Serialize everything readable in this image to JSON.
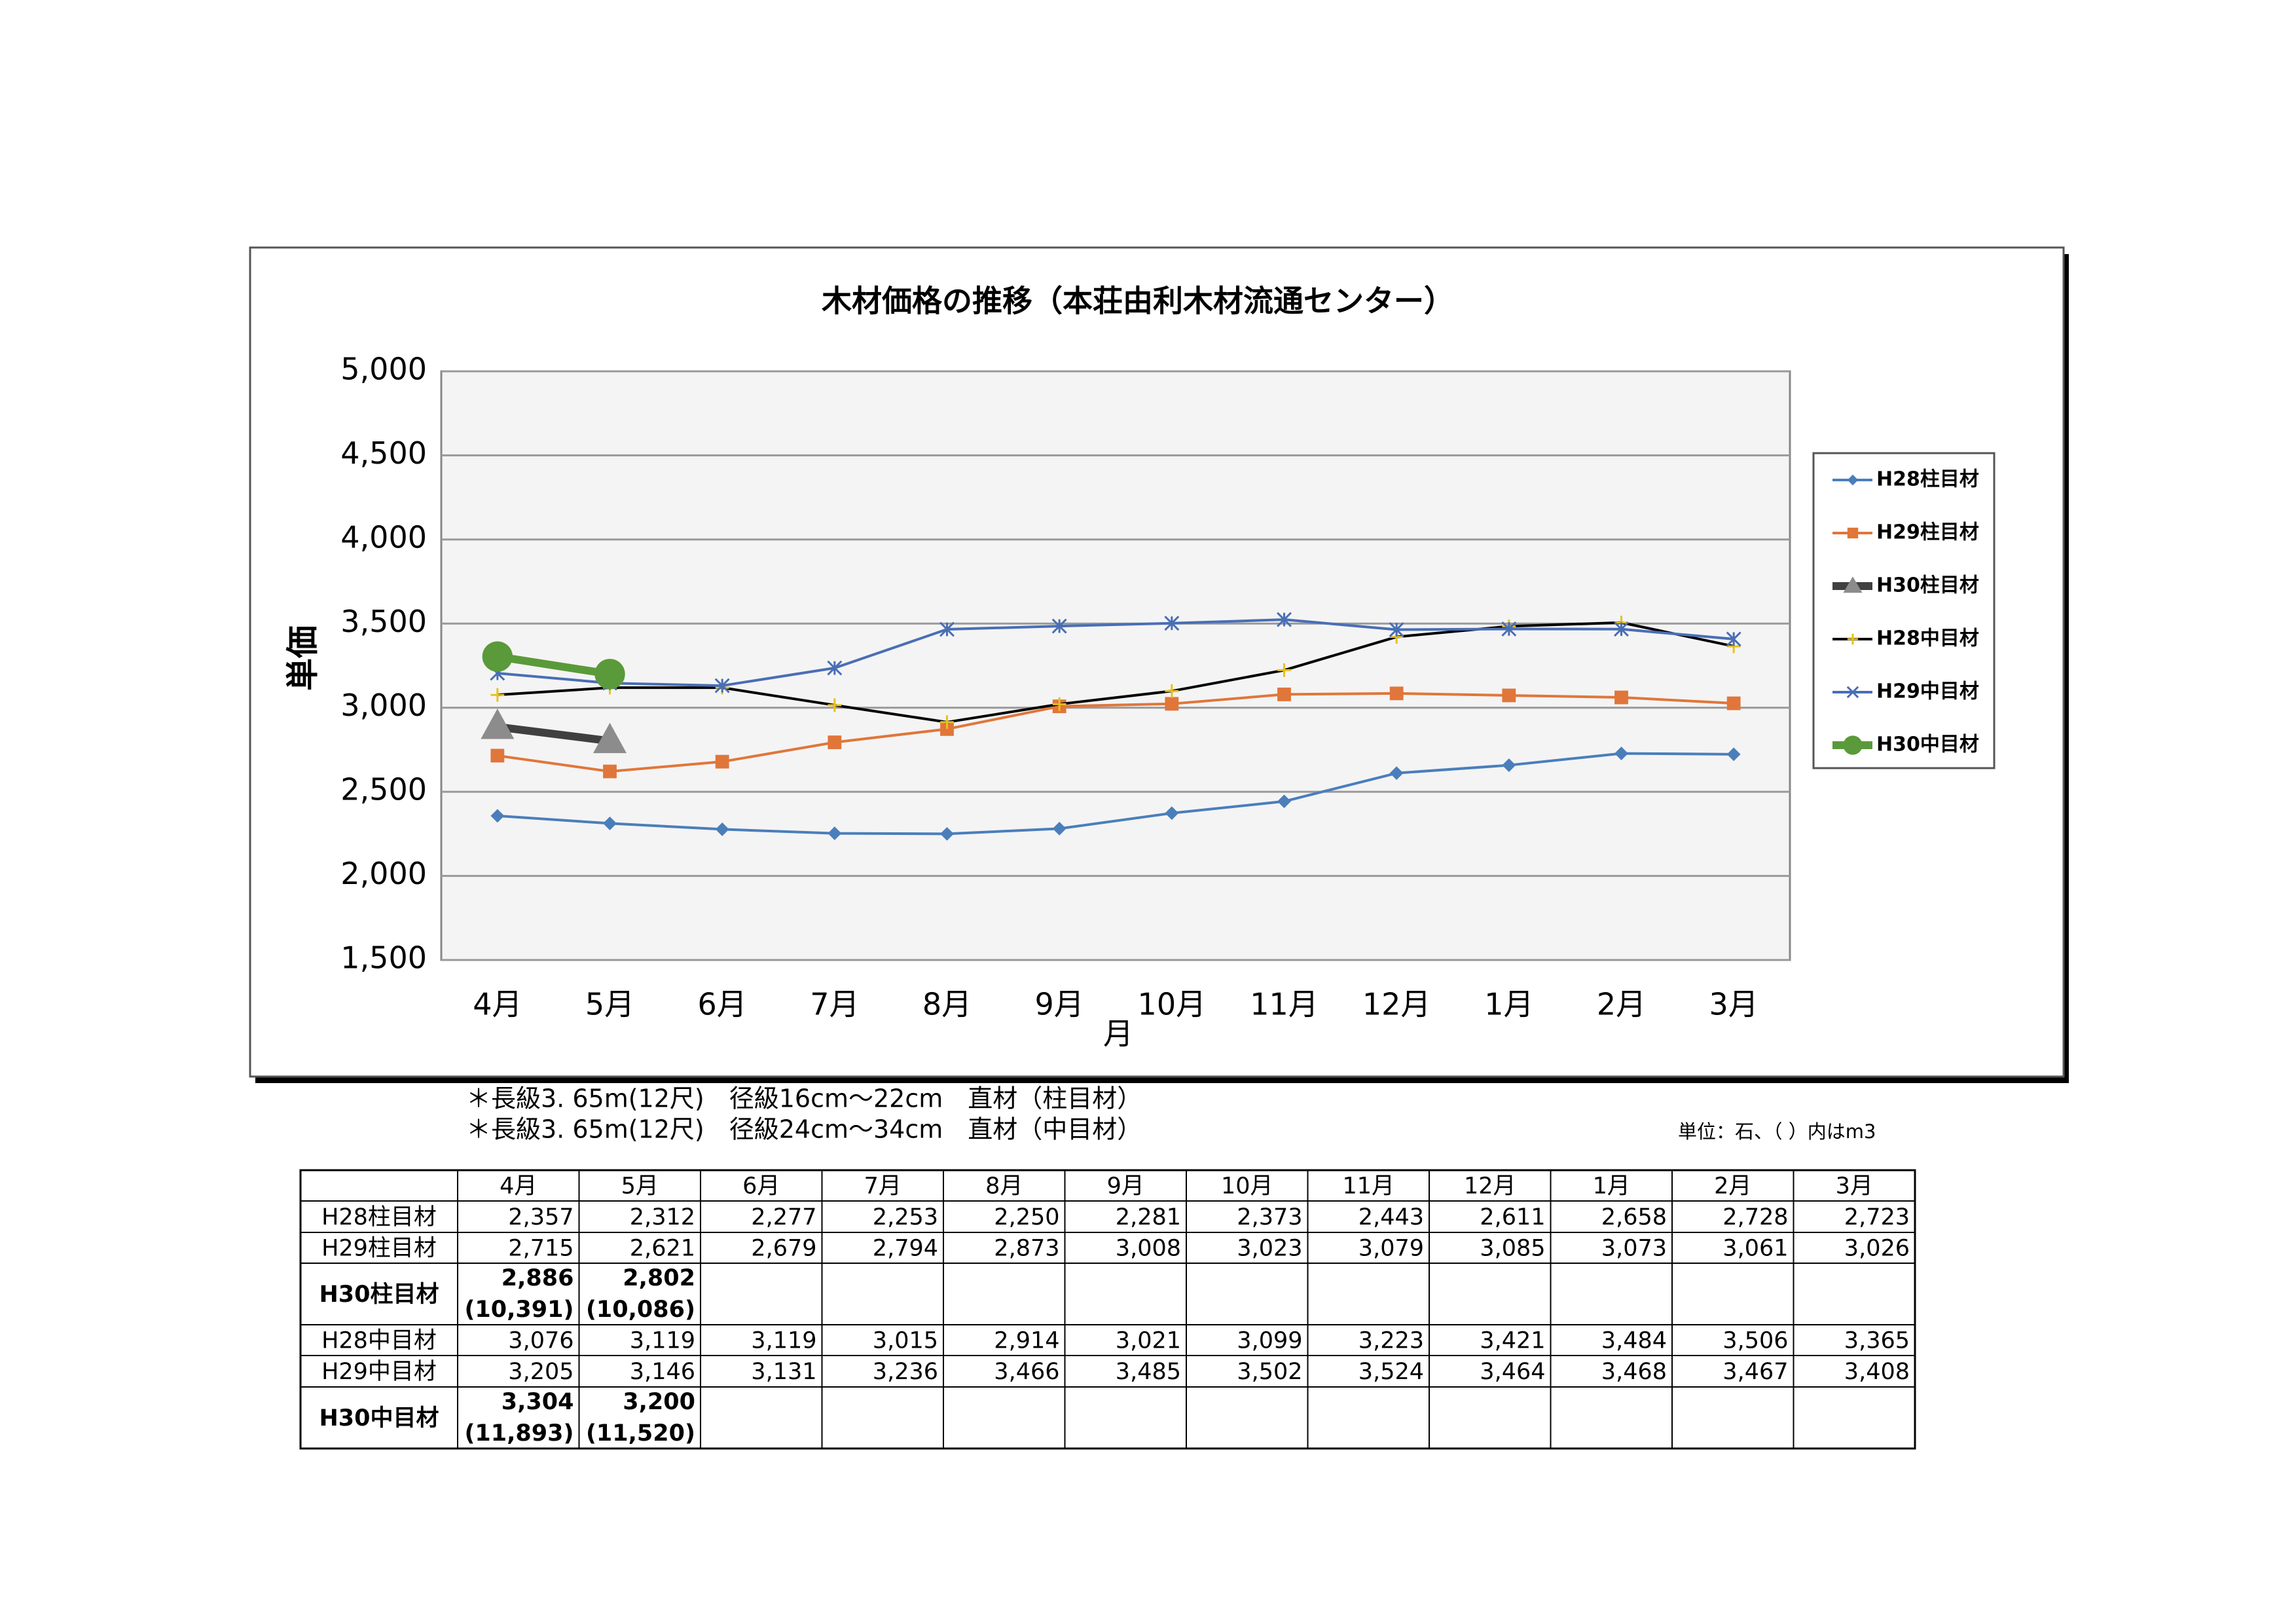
{
  "chart_data": {
    "type": "line",
    "title": "木材価格の推移（本荘由利木材流通センター）",
    "y_label": "単価",
    "x_label": "月",
    "categories": [
      "4月",
      "5月",
      "6月",
      "7月",
      "8月",
      "9月",
      "10月",
      "11月",
      "12月",
      "1月",
      "2月",
      "3月"
    ],
    "ylim": [
      1500,
      5000
    ],
    "yticks": [
      {
        "value": 1500,
        "label": "1,500"
      },
      {
        "value": 2000,
        "label": "2,000"
      },
      {
        "value": 2500,
        "label": "2,500"
      },
      {
        "value": 3000,
        "label": "3,000"
      },
      {
        "value": 3500,
        "label": "3,500"
      },
      {
        "value": 4000,
        "label": "4,000"
      },
      {
        "value": 4500,
        "label": "4,500"
      },
      {
        "value": 5000,
        "label": "5,000"
      }
    ],
    "grid": true,
    "legend": "right",
    "series": [
      {
        "name": "H28柱目材",
        "color": "#4a7ebb",
        "marker": "diamond",
        "line_width": 4,
        "values": [
          2357,
          2312,
          2277,
          2253,
          2250,
          2281,
          2373,
          2443,
          2611,
          2658,
          2728,
          2723
        ]
      },
      {
        "name": "H29柱目材",
        "color": "#e0763a",
        "marker": "square",
        "line_width": 4,
        "values": [
          2715,
          2621,
          2679,
          2794,
          2873,
          3008,
          3023,
          3079,
          3085,
          3073,
          3061,
          3026
        ]
      },
      {
        "name": "H30柱目材",
        "color": "#404040",
        "marker": "triangle",
        "marker_color": "#8c8c8c",
        "line_width": 12,
        "values": [
          2886,
          2802,
          null,
          null,
          null,
          null,
          null,
          null,
          null,
          null,
          null,
          null
        ]
      },
      {
        "name": "H28中目材",
        "color": "#000000",
        "marker": "plus",
        "marker_color": "#e8c020",
        "line_width": 4,
        "values": [
          3076,
          3119,
          3119,
          3015,
          2914,
          3021,
          3099,
          3223,
          3421,
          3484,
          3506,
          3365
        ]
      },
      {
        "name": "H29中目材",
        "color": "#4a6eb5",
        "marker": "star",
        "line_width": 4,
        "values": [
          3205,
          3146,
          3131,
          3236,
          3466,
          3485,
          3502,
          3524,
          3464,
          3468,
          3467,
          3408
        ]
      },
      {
        "name": "H30中目材",
        "color": "#5a9a3a",
        "marker": "circle",
        "line_width": 12,
        "values": [
          3304,
          3200,
          null,
          null,
          null,
          null,
          null,
          null,
          null,
          null,
          null,
          null
        ]
      }
    ]
  },
  "notes": [
    "＊長級3. 65m(12尺)　径級16cm～22cm　直材（柱目材）",
    "＊長級3. 65m(12尺)　径級24cm～34cm　直材（中目材）"
  ],
  "unit_note": "単位：石、（ ）内はm3",
  "table": {
    "columns": [
      "4月",
      "5月",
      "6月",
      "7月",
      "8月",
      "9月",
      "10月",
      "11月",
      "12月",
      "1月",
      "2月",
      "3月"
    ],
    "rows": [
      {
        "label": "H28柱目材",
        "cells": [
          "2,357",
          "2,312",
          "2,277",
          "2,253",
          "2,250",
          "2,281",
          "2,373",
          "2,443",
          "2,611",
          "2,658",
          "2,728",
          "2,723"
        ]
      },
      {
        "label": "H29柱目材",
        "cells": [
          "2,715",
          "2,621",
          "2,679",
          "2,794",
          "2,873",
          "3,008",
          "3,023",
          "3,079",
          "3,085",
          "3,073",
          "3,061",
          "3,026"
        ]
      },
      {
        "label": "H30柱目材",
        "cells": [
          "2,886",
          "2,802"
        ],
        "sub_cells": [
          "(10,391)",
          "(10,086)"
        ]
      },
      {
        "label": "H28中目材",
        "cells": [
          "3,076",
          "3,119",
          "3,119",
          "3,015",
          "2,914",
          "3,021",
          "3,099",
          "3,223",
          "3,421",
          "3,484",
          "3,506",
          "3,365"
        ]
      },
      {
        "label": "H29中目材",
        "cells": [
          "3,205",
          "3,146",
          "3,131",
          "3,236",
          "3,466",
          "3,485",
          "3,502",
          "3,524",
          "3,464",
          "3,468",
          "3,467",
          "3,408"
        ]
      },
      {
        "label": "H30中目材",
        "cells": [
          "3,304",
          "3,200"
        ],
        "sub_cells": [
          "(11,893)",
          "(11,520)"
        ]
      }
    ]
  }
}
